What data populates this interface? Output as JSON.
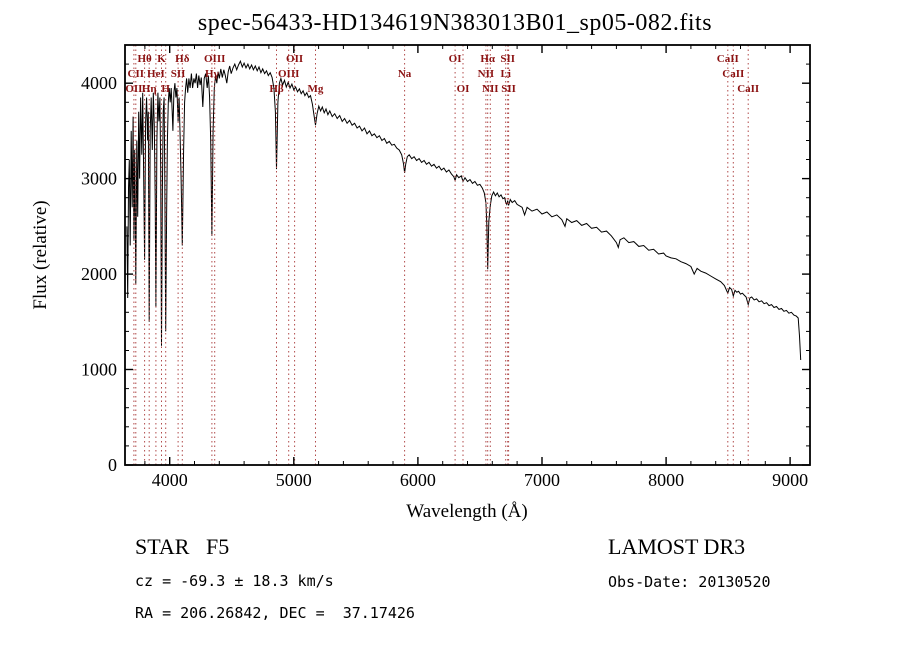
{
  "title": "spec-56433-HD134619N383013B01_sp05-082.fits",
  "annotations": {
    "object_type": "STAR   F5",
    "survey": "LAMOST DR3",
    "cz": "cz = -69.3 ± 18.3 km/s",
    "obs_date": "Obs-Date: 20130520",
    "radec": "RA = 206.26842, DEC =  37.17426"
  },
  "chart_data": {
    "type": "line",
    "title": "spec-56433-HD134619N383013B01_sp05-082.fits",
    "xlabel": "Wavelength (Å)",
    "ylabel": "Flux (relative)",
    "xlim": [
      3640,
      9160
    ],
    "ylim": [
      0,
      4400
    ],
    "xticks": [
      4000,
      5000,
      6000,
      7000,
      8000,
      9000
    ],
    "yticks": [
      0,
      1000,
      2000,
      3000,
      4000
    ],
    "x_minor_step": 200,
    "y_minor_step": 200,
    "grid": false,
    "line_color": "#000000",
    "marker_color": "#b04a4a",
    "label_color": "#8b1212",
    "line_markers": [
      {
        "label": "Hθ",
        "wavelength": 3798,
        "row": 1
      },
      {
        "label": "K",
        "wavelength": 3934,
        "row": 1
      },
      {
        "label": "Hδ",
        "wavelength": 4102,
        "row": 1
      },
      {
        "label": "OIII",
        "wavelength": 4363,
        "row": 1
      },
      {
        "label": "OII",
        "wavelength": 5007,
        "row": 1
      },
      {
        "label": "OI",
        "wavelength": 6300,
        "row": 1
      },
      {
        "label": "Hα",
        "wavelength": 6563,
        "row": 1
      },
      {
        "label": "SII",
        "wavelength": 6724,
        "row": 1
      },
      {
        "label": "CaII",
        "wavelength": 8498,
        "row": 1
      },
      {
        "label": "CII",
        "wavelength": 3727,
        "row": 2
      },
      {
        "label": "HeI",
        "wavelength": 3889,
        "row": 2
      },
      {
        "label": "SII",
        "wavelength": 4068,
        "row": 2
      },
      {
        "label": "Hγ",
        "wavelength": 4340,
        "row": 2
      },
      {
        "label": "OIII",
        "wavelength": 4959,
        "row": 2
      },
      {
        "label": "Na",
        "wavelength": 5893,
        "row": 2
      },
      {
        "label": "NII",
        "wavelength": 6548,
        "row": 2
      },
      {
        "label": "Li",
        "wavelength": 6708,
        "row": 2
      },
      {
        "label": "CaII",
        "wavelength": 8542,
        "row": 2
      },
      {
        "label": "OII",
        "wavelength": 3712,
        "row": 3
      },
      {
        "label": "Hη",
        "wavelength": 3835,
        "row": 3
      },
      {
        "label": "H",
        "wavelength": 3968,
        "row": 3
      },
      {
        "label": "Hβ",
        "wavelength": 4861,
        "row": 3
      },
      {
        "label": "Mg",
        "wavelength": 5175,
        "row": 3
      },
      {
        "label": "OI",
        "wavelength": 6364,
        "row": 3
      },
      {
        "label": "NII",
        "wavelength": 6584,
        "row": 3
      },
      {
        "label": "SII",
        "wavelength": 6731,
        "row": 3
      },
      {
        "label": "CaII",
        "wavelength": 8662,
        "row": 3
      }
    ],
    "spectrum": [
      [
        3655,
        2500
      ],
      [
        3662,
        1750
      ],
      [
        3668,
        2900
      ],
      [
        3675,
        3200
      ],
      [
        3682,
        2300
      ],
      [
        3690,
        3500
      ],
      [
        3698,
        2700
      ],
      [
        3705,
        3650
      ],
      [
        3712,
        2350
      ],
      [
        3718,
        3300
      ],
      [
        3727,
        1900
      ],
      [
        3735,
        3400
      ],
      [
        3742,
        2600
      ],
      [
        3750,
        3700
      ],
      [
        3758,
        3000
      ],
      [
        3766,
        3850
      ],
      [
        3775,
        3250
      ],
      [
        3783,
        3900
      ],
      [
        3790,
        3100
      ],
      [
        3798,
        2150
      ],
      [
        3806,
        3600
      ],
      [
        3814,
        3850
      ],
      [
        3822,
        3400
      ],
      [
        3828,
        3700
      ],
      [
        3835,
        1500
      ],
      [
        3843,
        3500
      ],
      [
        3851,
        3850
      ],
      [
        3860,
        3300
      ],
      [
        3868,
        3900
      ],
      [
        3876,
        3550
      ],
      [
        3883,
        2800
      ],
      [
        3889,
        1650
      ],
      [
        3897,
        3400
      ],
      [
        3905,
        3900
      ],
      [
        3913,
        3600
      ],
      [
        3921,
        3850
      ],
      [
        3928,
        3100
      ],
      [
        3934,
        1250
      ],
      [
        3941,
        2900
      ],
      [
        3948,
        3700
      ],
      [
        3955,
        3850
      ],
      [
        3961,
        3000
      ],
      [
        3968,
        1400
      ],
      [
        3975,
        2600
      ],
      [
        3982,
        3400
      ],
      [
        3989,
        3800
      ],
      [
        3996,
        3950
      ],
      [
        4004,
        3800
      ],
      [
        4012,
        3950
      ],
      [
        4020,
        3700
      ],
      [
        4026,
        3500
      ],
      [
        4034,
        3900
      ],
      [
        4042,
        4000
      ],
      [
        4050,
        3850
      ],
      [
        4058,
        3950
      ],
      [
        4068,
        3600
      ],
      [
        4076,
        3850
      ],
      [
        4084,
        3450
      ],
      [
        4092,
        3000
      ],
      [
        4102,
        2300
      ],
      [
        4112,
        3300
      ],
      [
        4120,
        3800
      ],
      [
        4128,
        3950
      ],
      [
        4136,
        4050
      ],
      [
        4145,
        3900
      ],
      [
        4155,
        4050
      ],
      [
        4165,
        3950
      ],
      [
        4175,
        4100
      ],
      [
        4185,
        3950
      ],
      [
        4195,
        4050
      ],
      [
        4205,
        4000
      ],
      [
        4215,
        4100
      ],
      [
        4225,
        3950
      ],
      [
        4235,
        4080
      ],
      [
        4245,
        3980
      ],
      [
        4255,
        4060
      ],
      [
        4267,
        3750
      ],
      [
        4278,
        4050
      ],
      [
        4290,
        4100
      ],
      [
        4302,
        3950
      ],
      [
        4312,
        4080
      ],
      [
        4322,
        3850
      ],
      [
        4331,
        3400
      ],
      [
        4340,
        2400
      ],
      [
        4350,
        3500
      ],
      [
        4360,
        3950
      ],
      [
        4370,
        4080
      ],
      [
        4380,
        4000
      ],
      [
        4390,
        4120
      ],
      [
        4400,
        4050
      ],
      [
        4412,
        4150
      ],
      [
        4424,
        4060
      ],
      [
        4436,
        4140
      ],
      [
        4448,
        4080
      ],
      [
        4460,
        4000
      ],
      [
        4472,
        4120
      ],
      [
        4484,
        4180
      ],
      [
        4496,
        4100
      ],
      [
        4510,
        4160
      ],
      [
        4525,
        4200
      ],
      [
        4540,
        4140
      ],
      [
        4555,
        4190
      ],
      [
        4570,
        4230
      ],
      [
        4585,
        4170
      ],
      [
        4600,
        4210
      ],
      [
        4615,
        4160
      ],
      [
        4630,
        4200
      ],
      [
        4645,
        4150
      ],
      [
        4660,
        4190
      ],
      [
        4675,
        4140
      ],
      [
        4690,
        4180
      ],
      [
        4705,
        4130
      ],
      [
        4720,
        4170
      ],
      [
        4735,
        4110
      ],
      [
        4750,
        4150
      ],
      [
        4765,
        4100
      ],
      [
        4780,
        4130
      ],
      [
        4795,
        4080
      ],
      [
        4810,
        4110
      ],
      [
        4825,
        4060
      ],
      [
        4840,
        3950
      ],
      [
        4852,
        3700
      ],
      [
        4861,
        3100
      ],
      [
        4872,
        3800
      ],
      [
        4884,
        4000
      ],
      [
        4896,
        4050
      ],
      [
        4910,
        3980
      ],
      [
        4925,
        4030
      ],
      [
        4940,
        3960
      ],
      [
        4955,
        4010
      ],
      [
        4970,
        3950
      ],
      [
        4985,
        3990
      ],
      [
        5000,
        3930
      ],
      [
        5015,
        3960
      ],
      [
        5030,
        3910
      ],
      [
        5045,
        3940
      ],
      [
        5060,
        3890
      ],
      [
        5075,
        3920
      ],
      [
        5090,
        3870
      ],
      [
        5105,
        3900
      ],
      [
        5120,
        3850
      ],
      [
        5135,
        3870
      ],
      [
        5150,
        3780
      ],
      [
        5165,
        3650
      ],
      [
        5175,
        3560
      ],
      [
        5188,
        3680
      ],
      [
        5202,
        3760
      ],
      [
        5216,
        3710
      ],
      [
        5230,
        3750
      ],
      [
        5245,
        3690
      ],
      [
        5260,
        3730
      ],
      [
        5275,
        3670
      ],
      [
        5290,
        3710
      ],
      [
        5310,
        3650
      ],
      [
        5330,
        3680
      ],
      [
        5350,
        3630
      ],
      [
        5370,
        3660
      ],
      [
        5390,
        3600
      ],
      [
        5410,
        3630
      ],
      [
        5430,
        3580
      ],
      [
        5450,
        3610
      ],
      [
        5470,
        3560
      ],
      [
        5490,
        3580
      ],
      [
        5510,
        3530
      ],
      [
        5530,
        3550
      ],
      [
        5550,
        3500
      ],
      [
        5570,
        3530
      ],
      [
        5590,
        3470
      ],
      [
        5610,
        3500
      ],
      [
        5630,
        3450
      ],
      [
        5650,
        3470
      ],
      [
        5670,
        3430
      ],
      [
        5690,
        3450
      ],
      [
        5710,
        3400
      ],
      [
        5730,
        3420
      ],
      [
        5750,
        3370
      ],
      [
        5770,
        3390
      ],
      [
        5790,
        3350
      ],
      [
        5810,
        3360
      ],
      [
        5830,
        3320
      ],
      [
        5850,
        3300
      ],
      [
        5870,
        3250
      ],
      [
        5885,
        3150
      ],
      [
        5893,
        3060
      ],
      [
        5902,
        3150
      ],
      [
        5915,
        3230
      ],
      [
        5930,
        3250
      ],
      [
        5950,
        3210
      ],
      [
        5970,
        3230
      ],
      [
        5990,
        3190
      ],
      [
        6010,
        3210
      ],
      [
        6030,
        3170
      ],
      [
        6050,
        3190
      ],
      [
        6070,
        3150
      ],
      [
        6090,
        3170
      ],
      [
        6110,
        3130
      ],
      [
        6130,
        3150
      ],
      [
        6150,
        3110
      ],
      [
        6170,
        3130
      ],
      [
        6190,
        3090
      ],
      [
        6210,
        3110
      ],
      [
        6230,
        3070
      ],
      [
        6250,
        3090
      ],
      [
        6270,
        3050
      ],
      [
        6290,
        3020
      ],
      [
        6300,
        2980
      ],
      [
        6312,
        3040
      ],
      [
        6330,
        3010
      ],
      [
        6350,
        3030
      ],
      [
        6364,
        2970
      ],
      [
        6380,
        3010
      ],
      [
        6400,
        2970
      ],
      [
        6420,
        2990
      ],
      [
        6440,
        2950
      ],
      [
        6460,
        2970
      ],
      [
        6480,
        2930
      ],
      [
        6500,
        2940
      ],
      [
        6520,
        2900
      ],
      [
        6535,
        2850
      ],
      [
        6548,
        2750
      ],
      [
        6556,
        2500
      ],
      [
        6563,
        2050
      ],
      [
        6572,
        2550
      ],
      [
        6584,
        2720
      ],
      [
        6596,
        2820
      ],
      [
        6610,
        2860
      ],
      [
        6625,
        2820
      ],
      [
        6640,
        2850
      ],
      [
        6655,
        2810
      ],
      [
        6670,
        2830
      ],
      [
        6685,
        2790
      ],
      [
        6700,
        2800
      ],
      [
        6708,
        2750
      ],
      [
        6717,
        2730
      ],
      [
        6724,
        2770
      ],
      [
        6731,
        2720
      ],
      [
        6745,
        2780
      ],
      [
        6760,
        2750
      ],
      [
        6780,
        2770
      ],
      [
        6800,
        2730
      ],
      [
        6840,
        2700
      ],
      [
        6860,
        2620
      ],
      [
        6880,
        2700
      ],
      [
        6920,
        2660
      ],
      [
        6960,
        2680
      ],
      [
        7000,
        2630
      ],
      [
        7040,
        2650
      ],
      [
        7080,
        2600
      ],
      [
        7120,
        2620
      ],
      [
        7160,
        2570
      ],
      [
        7186,
        2500
      ],
      [
        7200,
        2580
      ],
      [
        7240,
        2540
      ],
      [
        7280,
        2560
      ],
      [
        7320,
        2510
      ],
      [
        7360,
        2530
      ],
      [
        7400,
        2480
      ],
      [
        7440,
        2490
      ],
      [
        7480,
        2440
      ],
      [
        7520,
        2450
      ],
      [
        7560,
        2400
      ],
      [
        7600,
        2330
      ],
      [
        7615,
        2280
      ],
      [
        7630,
        2360
      ],
      [
        7660,
        2380
      ],
      [
        7700,
        2330
      ],
      [
        7740,
        2340
      ],
      [
        7780,
        2290
      ],
      [
        7820,
        2300
      ],
      [
        7860,
        2250
      ],
      [
        7900,
        2260
      ],
      [
        7940,
        2210
      ],
      [
        7980,
        2220
      ],
      [
        8000,
        2190
      ],
      [
        8040,
        2170
      ],
      [
        8080,
        2160
      ],
      [
        8120,
        2130
      ],
      [
        8160,
        2110
      ],
      [
        8200,
        2080
      ],
      [
        8227,
        2000
      ],
      [
        8250,
        2060
      ],
      [
        8280,
        2030
      ],
      [
        8320,
        2010
      ],
      [
        8360,
        1980
      ],
      [
        8400,
        1950
      ],
      [
        8440,
        1920
      ],
      [
        8470,
        1880
      ],
      [
        8498,
        1800
      ],
      [
        8512,
        1860
      ],
      [
        8528,
        1840
      ],
      [
        8542,
        1770
      ],
      [
        8556,
        1830
      ],
      [
        8570,
        1810
      ],
      [
        8585,
        1820
      ],
      [
        8600,
        1790
      ],
      [
        8615,
        1800
      ],
      [
        8630,
        1780
      ],
      [
        8645,
        1760
      ],
      [
        8662,
        1680
      ],
      [
        8676,
        1750
      ],
      [
        8690,
        1760
      ],
      [
        8710,
        1730
      ],
      [
        8730,
        1740
      ],
      [
        8750,
        1710
      ],
      [
        8770,
        1720
      ],
      [
        8790,
        1690
      ],
      [
        8810,
        1700
      ],
      [
        8830,
        1670
      ],
      [
        8850,
        1680
      ],
      [
        8870,
        1650
      ],
      [
        8890,
        1660
      ],
      [
        8910,
        1630
      ],
      [
        8930,
        1640
      ],
      [
        8950,
        1610
      ],
      [
        8970,
        1620
      ],
      [
        8990,
        1590
      ],
      [
        9010,
        1600
      ],
      [
        9030,
        1570
      ],
      [
        9050,
        1560
      ],
      [
        9065,
        1540
      ],
      [
        9075,
        1350
      ],
      [
        9085,
        1100
      ]
    ]
  }
}
